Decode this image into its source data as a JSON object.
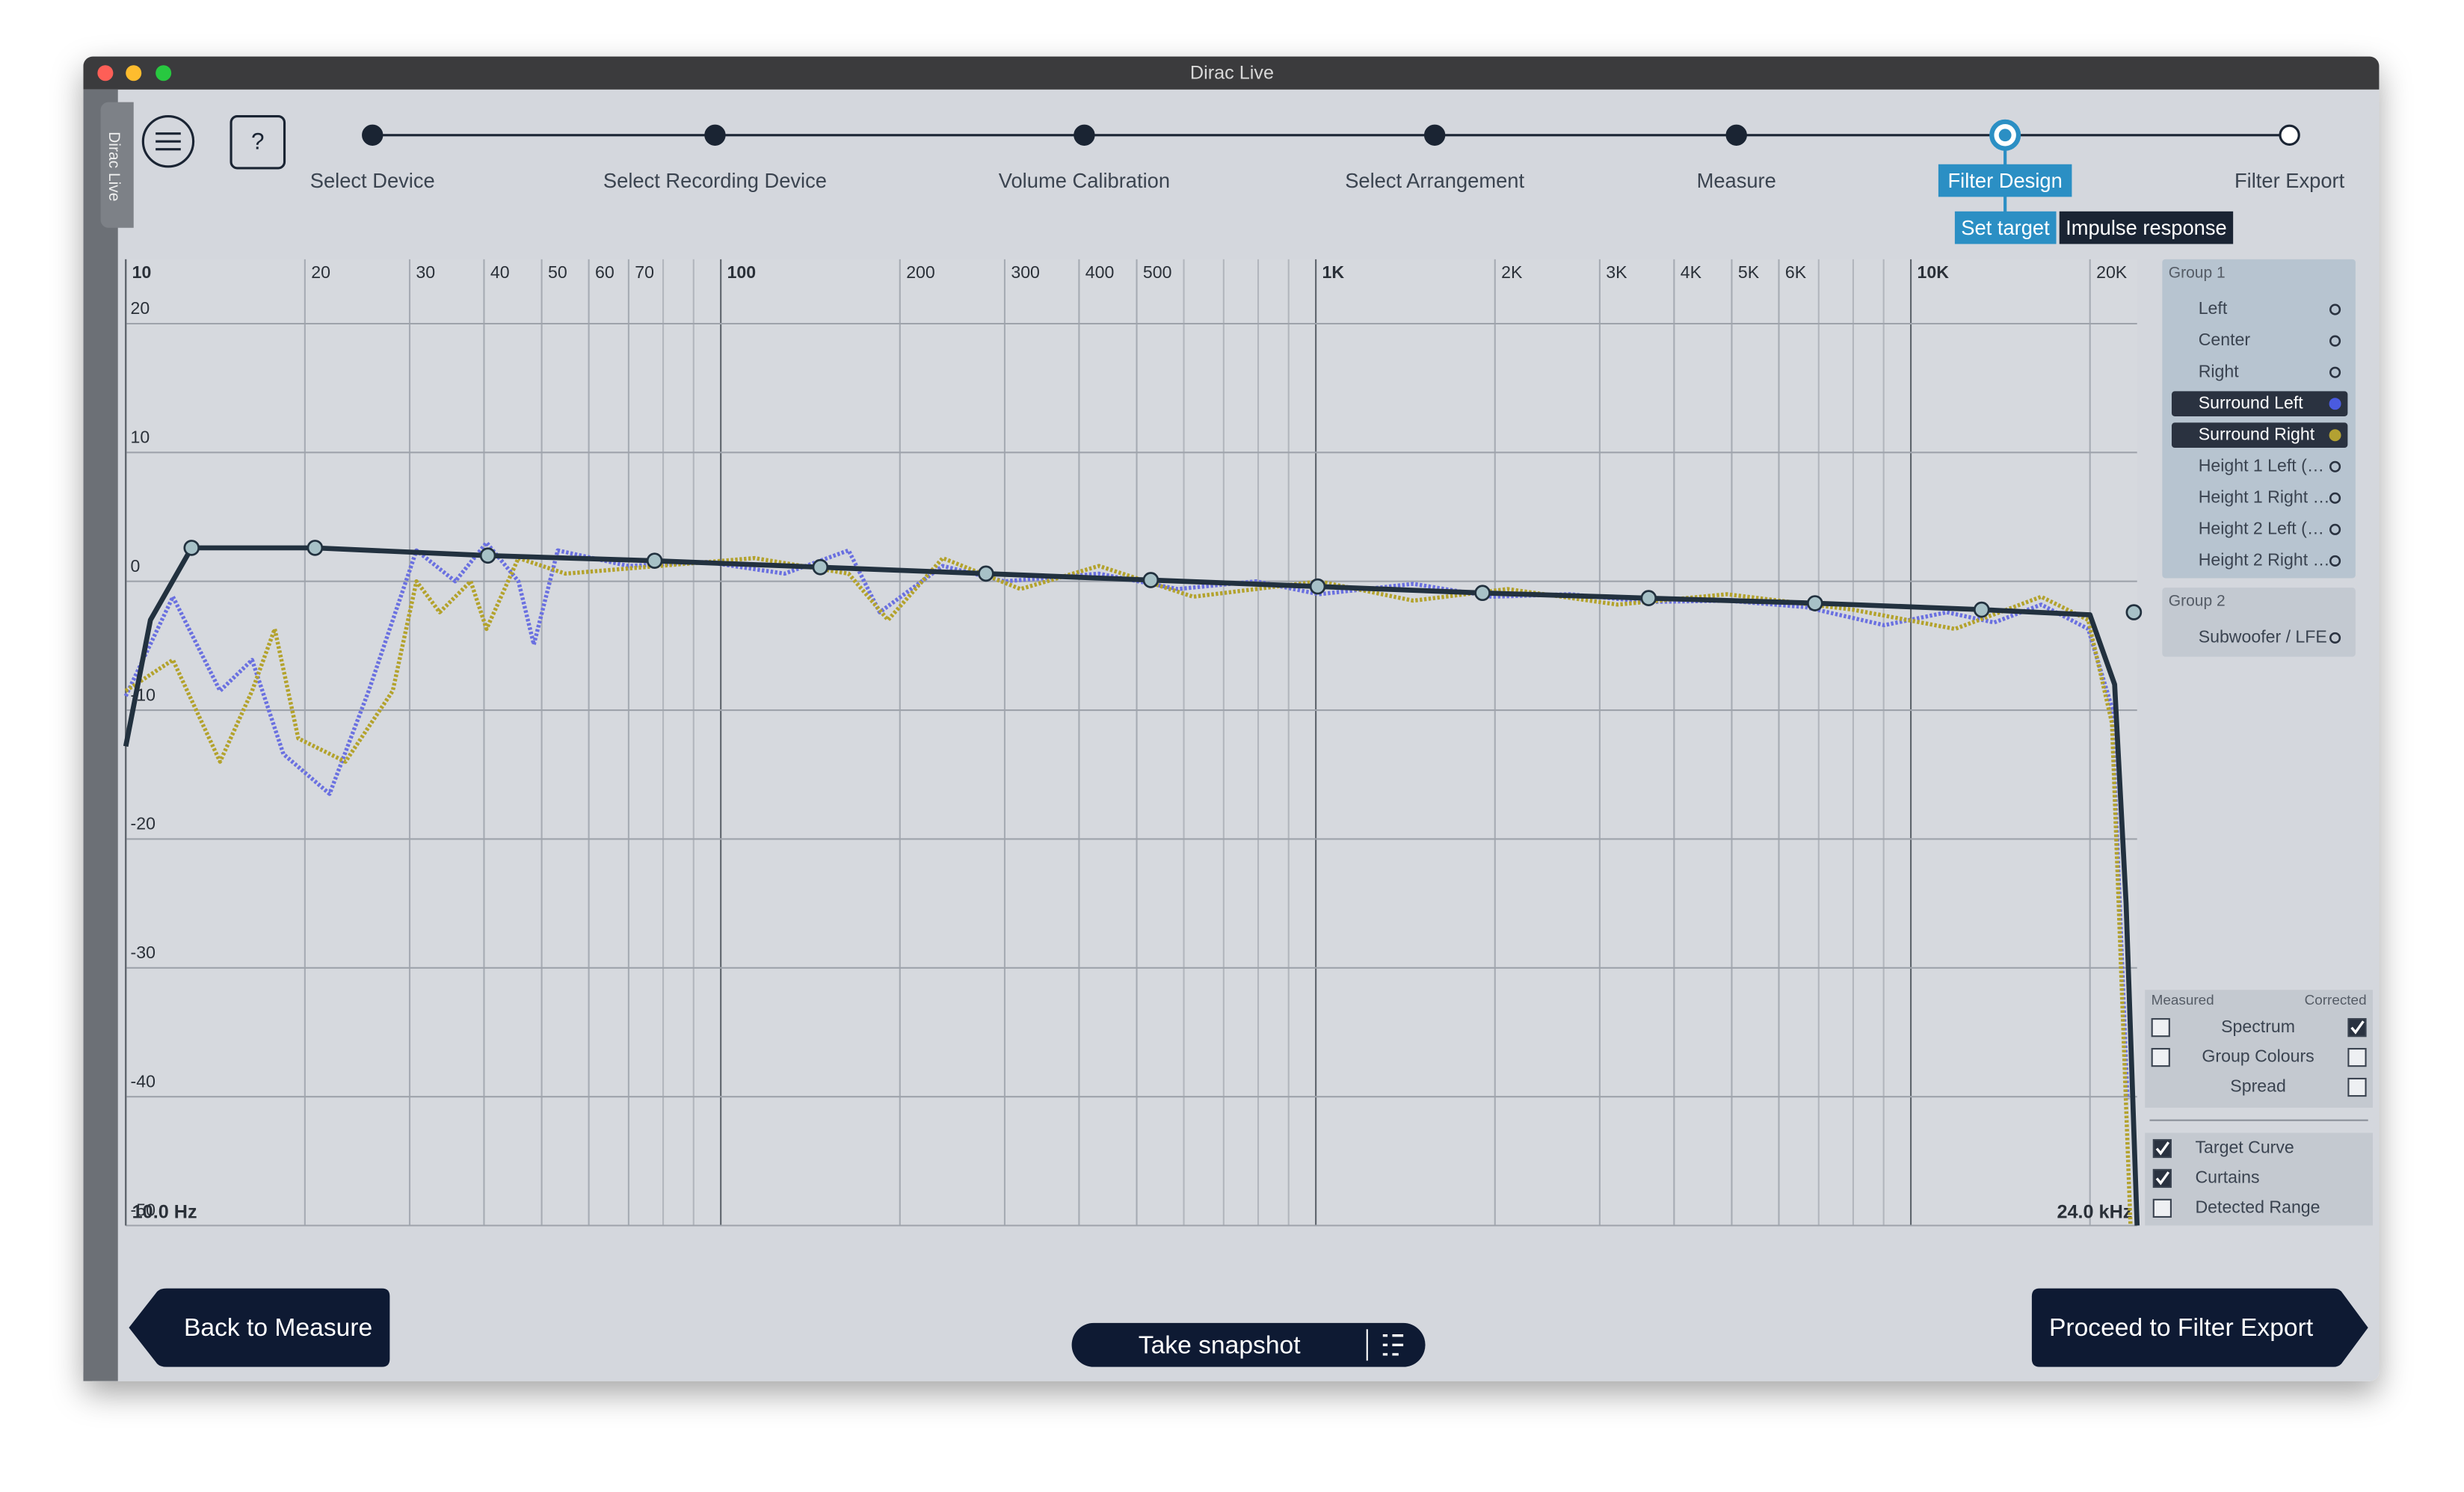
{
  "window": {
    "title": "Dirac Live",
    "sidebar_tab": "Dirac Live"
  },
  "header": {
    "help_label": "?",
    "steps": [
      "Select Device",
      "Select Recording Device",
      "Volume Calibration",
      "Select Arrangement",
      "Measure",
      "Filter Design",
      "Filter Export"
    ],
    "active_step": 5,
    "subtabs": [
      "Set target",
      "Impulse response"
    ]
  },
  "chart_data": {
    "type": "line",
    "x_scale": "log",
    "grid": true,
    "xlim": [
      10,
      24000
    ],
    "ylim": [
      -50,
      25
    ],
    "xticks": [
      10,
      20,
      30,
      40,
      50,
      60,
      70,
      100,
      200,
      300,
      400,
      500,
      {
        "value": 1000,
        "label": "1K"
      },
      {
        "value": 2000,
        "label": "2K"
      },
      {
        "value": 3000,
        "label": "3K"
      },
      {
        "value": 4000,
        "label": "4K"
      },
      {
        "value": 5000,
        "label": "5K"
      },
      {
        "value": 6000,
        "label": "6K"
      },
      {
        "value": 10000,
        "label": "10K"
      },
      {
        "value": 20000,
        "label": "20K"
      }
    ],
    "minor_xgrid": [
      80,
      90,
      600,
      700,
      800,
      900,
      7000,
      8000,
      9000
    ],
    "yticks": [
      -50,
      -40,
      -30,
      -20,
      -10,
      0,
      10,
      20
    ],
    "range_labels": [
      "10.0 Hz",
      "24.0 kHz"
    ],
    "series": [
      {
        "color": "#6a70e0",
        "style": "dotted",
        "x": [
          10,
          12.0,
          14.4,
          16.3,
          18.4,
          22.0,
          25.6,
          30.8,
          35.8,
          40.4,
          45.7,
          48.5,
          53.2,
          69.9,
          94.7,
          128,
          164,
          185,
          236,
          300,
          432,
          586,
          794,
          1012,
          1458,
          1976,
          2673,
          3625,
          4910,
          6650,
          9020,
          11500,
          13800,
          16560,
          19870,
          21780,
          23120
        ],
        "values": [
          -8.9,
          -1.2,
          -8.5,
          -6.1,
          -13.4,
          -16.5,
          -8.5,
          2.4,
          0,
          3.0,
          0,
          -4.9,
          2.4,
          1.2,
          1.5,
          0.6,
          2.4,
          -2.4,
          1.2,
          0,
          0.6,
          -0.6,
          0,
          -1.0,
          -0.2,
          -1.2,
          -1.0,
          -1.6,
          -1.5,
          -2.0,
          -3.4,
          -2.4,
          -3.2,
          -1.8,
          -3.7,
          -9.8,
          -40.2
        ]
      },
      {
        "color": "#b3a22c",
        "style": "dotted",
        "x": [
          10,
          12.0,
          14.4,
          16.3,
          17.8,
          19.5,
          23.4,
          28.1,
          30.8,
          33.7,
          38.0,
          40.4,
          45.7,
          54.8,
          78.9,
          114,
          164,
          191,
          236,
          319,
          432,
          622,
          1012,
          1458,
          2099,
          3214,
          4910,
          7980,
          11860,
          16560,
          19870,
          21780,
          23390
        ],
        "values": [
          -8.5,
          -6.1,
          -14.0,
          -8.5,
          -3.7,
          -12.2,
          -14.0,
          -8.5,
          0,
          -2.4,
          0,
          -3.7,
          1.8,
          0.6,
          1.2,
          1.8,
          0.6,
          -3.0,
          1.8,
          -0.6,
          1.2,
          -1.2,
          0,
          -1.5,
          -0.6,
          -1.8,
          -1.0,
          -2.2,
          -3.7,
          -1.2,
          -3.0,
          -11,
          -50
        ]
      },
      {
        "color": "#22313f",
        "style": "solid",
        "x": [
          10,
          11,
          12.9,
          20.8,
          40.6,
          77.4,
          147,
          279,
          528,
          1007,
          1906,
          3625,
          6900,
          13150,
          20000,
          22000,
          23000,
          24000
        ],
        "values": [
          -12.8,
          -3,
          2.6,
          2.6,
          2.0,
          1.6,
          1.1,
          0.6,
          0.1,
          -0.4,
          -0.9,
          -1.3,
          -1.7,
          -2.2,
          -2.6,
          -8,
          -25,
          -50
        ]
      }
    ],
    "control_points": {
      "x": [
        12.9,
        20.8,
        40.6,
        77.4,
        147,
        279,
        528,
        1007,
        1906,
        3625,
        6900,
        13150,
        23700
      ],
      "values": [
        2.6,
        2.6,
        2.0,
        1.6,
        1.1,
        0.6,
        0.1,
        -0.4,
        -0.9,
        -1.3,
        -1.7,
        -2.2,
        -2.4
      ]
    }
  },
  "channels": [
    {
      "title": "Group 1",
      "items": [
        {
          "label": "Left",
          "selected": false
        },
        {
          "label": "Center",
          "selected": false
        },
        {
          "label": "Right",
          "selected": false
        },
        {
          "label": "Surround Left",
          "selected": true,
          "dot_color": "#4a5be0"
        },
        {
          "label": "Surround Right",
          "selected": true,
          "dot_color": "#b3a132"
        },
        {
          "label": "Height 1 Left (…",
          "selected": false
        },
        {
          "label": "Height 1 Right …",
          "selected": false
        },
        {
          "label": "Height 2 Left (…",
          "selected": false
        },
        {
          "label": "Height 2 Right …",
          "selected": false
        }
      ]
    },
    {
      "title": "Group 2",
      "items": [
        {
          "label": "Subwoofer / LFE",
          "selected": false
        }
      ]
    }
  ],
  "display_options": {
    "measured_header": "Measured",
    "corrected_header": "Corrected",
    "rows": [
      {
        "label": "Spectrum",
        "measured": false,
        "corrected": true
      },
      {
        "label": "Group Colours",
        "measured": false,
        "corrected": false
      },
      {
        "label": "Spread",
        "corrected": false
      }
    ]
  },
  "overlays": [
    {
      "label": "Target Curve",
      "checked": true
    },
    {
      "label": "Curtains",
      "checked": true
    },
    {
      "label": "Detected Range",
      "checked": false
    }
  ],
  "buttons": {
    "back": "Back to Measure",
    "snapshot": "Take snapshot",
    "proceed": "Proceed to Filter Export"
  }
}
